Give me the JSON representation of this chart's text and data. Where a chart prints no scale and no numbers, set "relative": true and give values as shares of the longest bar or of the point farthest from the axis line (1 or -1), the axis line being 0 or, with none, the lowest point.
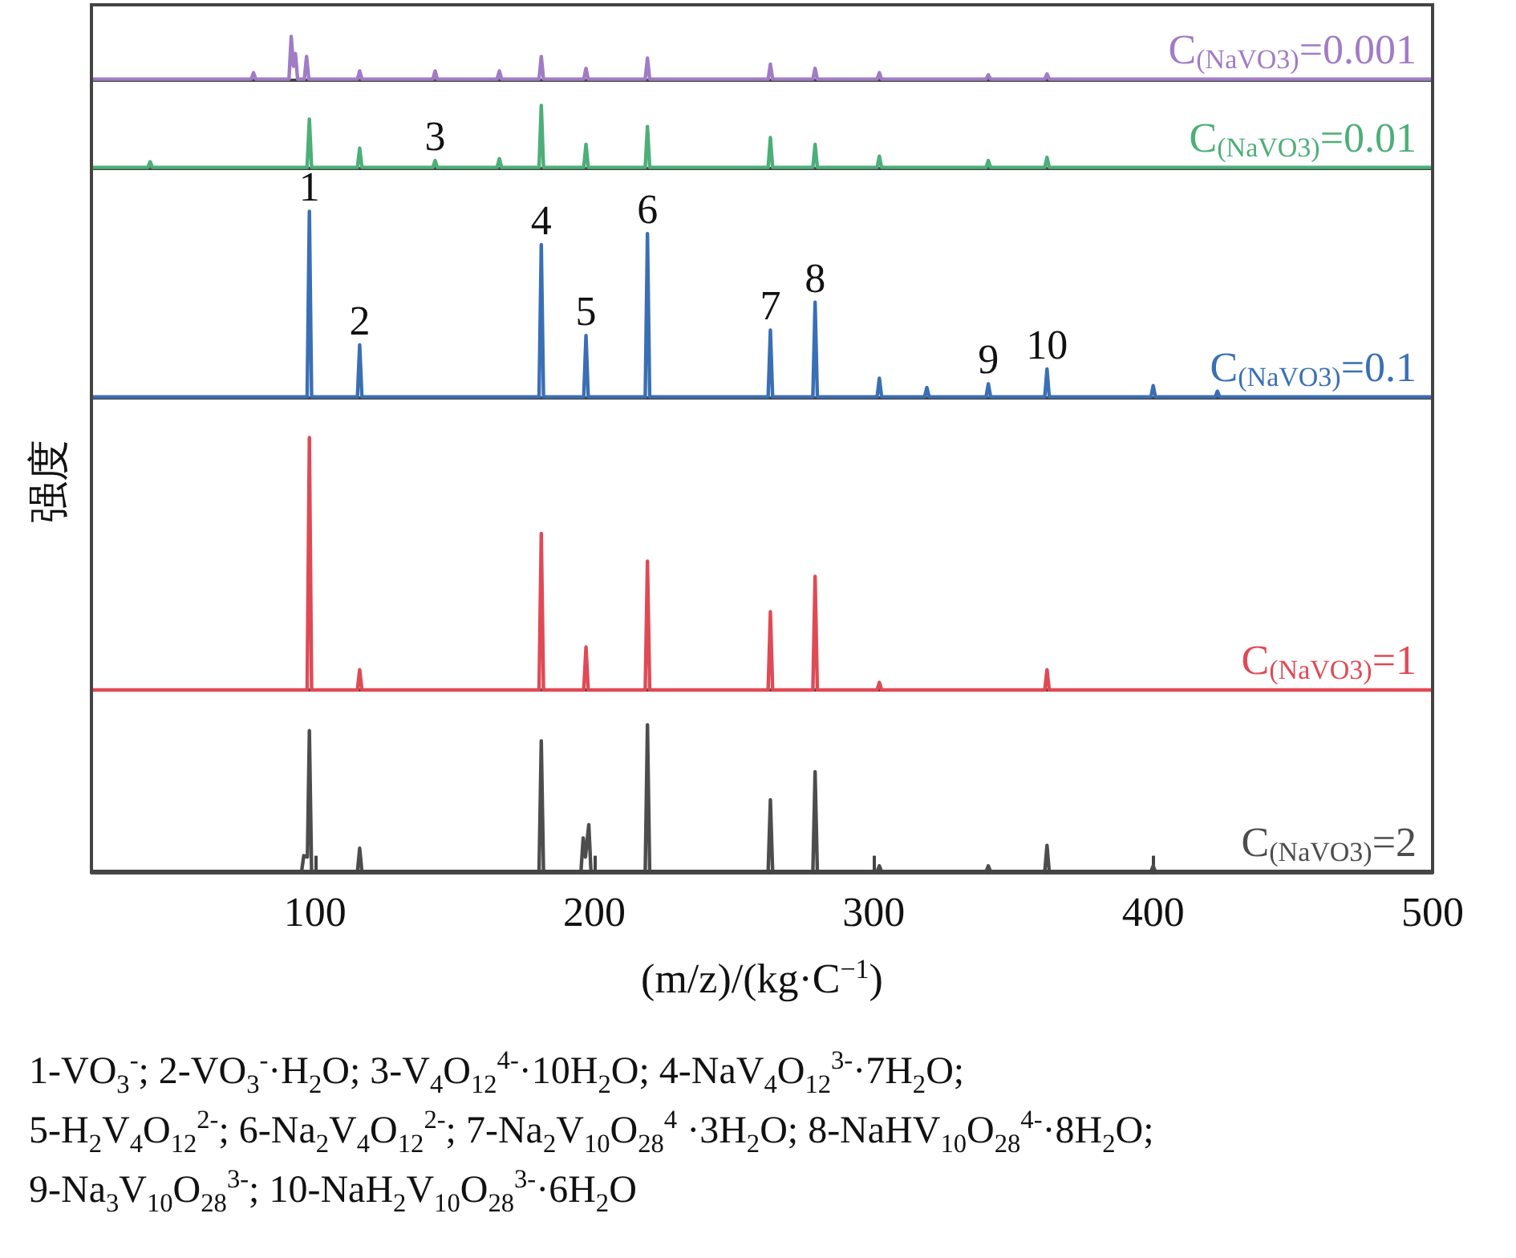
{
  "chart_data": [
    {
      "type": "line",
      "relative": true,
      "xlim": [
        20,
        500
      ],
      "tick_labels": false,
      "series": [
        {
          "name": "C$_{(NaVO3)}$=0.001",
          "color": "#a07cc5",
          "x": [
            20,
            77.2,
            78,
            78.8,
            90.7,
            91.5,
            92.3,
            93,
            93.8,
            96.2,
            97,
            97.8,
            115.2,
            116,
            116.8,
            142.2,
            143,
            143.8,
            165.2,
            166,
            166.8,
            180.2,
            181,
            181.8,
            196.2,
            197,
            197.8,
            218.2,
            219,
            219.8,
            262.2,
            263,
            263.8,
            278.2,
            279,
            279.8,
            301.2,
            302,
            302.8,
            340.2,
            341,
            341.8,
            361.2,
            362,
            362.8,
            500
          ],
          "values": [
            0,
            0,
            0.15,
            0,
            0,
            1,
            0.3,
            0.6,
            0,
            0,
            0.53,
            0,
            0,
            0.19,
            0,
            0,
            0.19,
            0,
            0,
            0.19,
            0,
            0,
            0.53,
            0,
            0,
            0.25,
            0,
            0,
            0.49,
            0,
            0,
            0.35,
            0,
            0,
            0.25,
            0,
            0,
            0.15,
            0,
            0,
            0.1,
            0,
            0,
            0.12,
            0,
            0
          ]
        }
      ]
    },
    {
      "type": "line",
      "relative": true,
      "xlim": [
        20,
        500
      ],
      "tick_labels": false,
      "series": [
        {
          "name": "C$_{(NaVO3)}$=0.01",
          "color": "#4caf78",
          "x": [
            20,
            40.2,
            41,
            41.8,
            97.2,
            98,
            98.8,
            115.2,
            116,
            116.8,
            142.2,
            143,
            143.8,
            165.2,
            166,
            166.8,
            180.2,
            181,
            181.8,
            196.2,
            197,
            197.8,
            218.2,
            219,
            219.8,
            262.2,
            263,
            263.8,
            278.2,
            279,
            279.8,
            301.2,
            302,
            302.8,
            340.2,
            341,
            341.8,
            361.2,
            362,
            362.8,
            500
          ],
          "values": [
            0,
            0,
            0.09,
            0,
            0,
            0.78,
            0,
            0,
            0.31,
            0,
            0,
            0.11,
            0,
            0,
            0.14,
            0,
            0,
            1,
            0,
            0,
            0.37,
            0,
            0,
            0.66,
            0,
            0,
            0.48,
            0,
            0,
            0.37,
            0,
            0,
            0.18,
            0,
            0,
            0.11,
            0,
            0,
            0.16,
            0,
            0
          ]
        }
      ],
      "annotations": [
        {
          "text": "3",
          "x": 143,
          "y": 0.11
        }
      ]
    },
    {
      "type": "line",
      "relative": true,
      "xlim": [
        20,
        500
      ],
      "tick_labels": false,
      "ylabel": "强度",
      "series": [
        {
          "name": "C$_{(NaVO3)}$=0.1",
          "color": "#3a6fb5",
          "x": [
            20,
            97.2,
            98,
            98.8,
            115.2,
            116,
            116.8,
            180.2,
            181,
            181.8,
            196.2,
            197,
            197.8,
            218.2,
            219,
            219.8,
            262.2,
            263,
            263.8,
            278.2,
            279,
            279.8,
            301.2,
            302,
            302.8,
            318.2,
            319,
            319.8,
            340.2,
            341,
            341.8,
            361.2,
            362,
            362.8,
            399.2,
            400,
            400.8,
            422.2,
            423,
            423.8,
            500
          ],
          "values": [
            0,
            0,
            1,
            0,
            0,
            0.28,
            0,
            0,
            0.82,
            0,
            0,
            0.33,
            0,
            0,
            0.88,
            0,
            0,
            0.36,
            0,
            0,
            0.51,
            0,
            0,
            0.1,
            0,
            0,
            0.05,
            0,
            0,
            0.07,
            0,
            0,
            0.15,
            0,
            0,
            0.06,
            0,
            0,
            0.03,
            0,
            0
          ]
        }
      ],
      "annotations": [
        {
          "text": "1",
          "x": 98,
          "y": 1
        },
        {
          "text": "2",
          "x": 116,
          "y": 0.28
        },
        {
          "text": "4",
          "x": 181,
          "y": 0.82
        },
        {
          "text": "5",
          "x": 197,
          "y": 0.33
        },
        {
          "text": "6",
          "x": 219,
          "y": 0.88
        },
        {
          "text": "7",
          "x": 263,
          "y": 0.36
        },
        {
          "text": "8",
          "x": 279,
          "y": 0.51
        },
        {
          "text": "9",
          "x": 341,
          "y": 0.07
        },
        {
          "text": "10",
          "x": 362,
          "y": 0.15
        }
      ]
    },
    {
      "type": "line",
      "relative": true,
      "xlim": [
        20,
        500
      ],
      "tick_labels": false,
      "series": [
        {
          "name": "C$_{(NaVO3)}$=1",
          "color": "#e04a55",
          "x": [
            20,
            97.2,
            98,
            98.8,
            115.2,
            116,
            116.8,
            180.2,
            181,
            181.8,
            196.2,
            197,
            197.8,
            218.2,
            219,
            219.8,
            262.2,
            263,
            263.8,
            278.2,
            279,
            279.8,
            301.2,
            302,
            302.8,
            361.2,
            362,
            362.8,
            500
          ],
          "values": [
            0,
            0,
            1,
            0,
            0,
            0.08,
            0,
            0,
            0.62,
            0,
            0,
            0.17,
            0,
            0,
            0.51,
            0,
            0,
            0.31,
            0,
            0,
            0.45,
            0,
            0,
            0.03,
            0,
            0,
            0.08,
            0,
            0
          ]
        }
      ]
    },
    {
      "type": "line",
      "relative": true,
      "xlim": [
        20,
        500
      ],
      "xticks": [
        100,
        200,
        300,
        400,
        500
      ],
      "tick_labels": "x",
      "xlabel": "(m/z)/(kg·C$^{−1}$)",
      "series": [
        {
          "name": "C$_{(NaVO3)}$=2",
          "color": "#4d4d4d",
          "x": [
            20,
            95.2,
            96,
            97.3,
            98,
            98.8,
            115.2,
            116,
            116.8,
            180.2,
            181,
            181.8,
            195.2,
            196,
            196.8,
            198,
            198.8,
            218.2,
            219,
            219.8,
            262.2,
            263,
            263.8,
            278.2,
            279,
            279.8,
            301.2,
            302,
            302.8,
            340.2,
            341,
            341.8,
            361.2,
            362,
            362.8,
            399.2,
            400,
            400.8,
            500
          ],
          "values": [
            0,
            0,
            0.11,
            0.1,
            0.96,
            0,
            0,
            0.16,
            0,
            0,
            0.89,
            0,
            0,
            0.23,
            0.1,
            0.32,
            0,
            0,
            1,
            0,
            0,
            0.49,
            0,
            0,
            0.68,
            0,
            0,
            0.04,
            0,
            0,
            0.04,
            0,
            0,
            0.18,
            0,
            0,
            0.04,
            0,
            0
          ]
        }
      ],
      "annotations": [
        "1-VO$_{3}$$^{-}$; 2-VO$_{3}$$^{-}$·H$_{2}$O; 3-V$_{4}$O$_{12}$$^{4-}$·10H$_{2}$O; 4-NaV$_{4}$O$_{12}$$^{3-}$·7H$_{2}$O;",
        "5-H$_{2}$V$_{4}$O$_{12}$$^{2-}$; 6-Na$_{2}$V$_{4}$O$_{12}$$^{2-}$; 7-Na$_{2}$V$_{10}$O$_{28}$$^{4}$ ·3H$_{2}$O; 8-NaHV$_{10}$O$_{28}$$^{4-}$·8H$_{2}$O;",
        "9-Na$_{3}$V$_{10}$O$_{28}$$^{3-}$; 10-NaH$_{2}$V$_{10}$O$_{28}$$^{3-}$·6H$_{2}$O"
      ]
    }
  ]
}
